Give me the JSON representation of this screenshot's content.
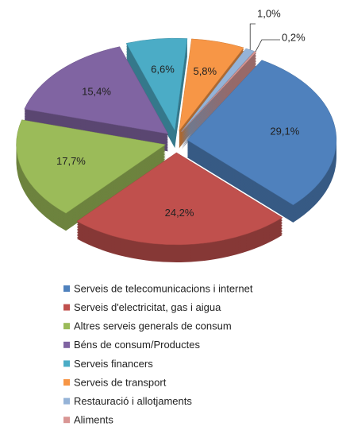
{
  "chart_data": {
    "type": "pie",
    "categories": [
      "Serveis de telecomunicacions i internet",
      "Serveis d'electricitat, gas i aigua",
      "Altres serveis generals de consum",
      "Béns de consum/Productes",
      "Serveis financers",
      "Serveis de transport",
      "Restauració i allotjaments",
      "Aliments"
    ],
    "values": [
      29.1,
      24.2,
      17.7,
      15.4,
      6.6,
      5.8,
      1.0,
      0.2
    ],
    "value_labels": [
      "29,1%",
      "24,2%",
      "17,7%",
      "15,4%",
      "6,6%",
      "5,8%",
      "1,0%",
      "0,2%"
    ],
    "colors": [
      "#4f81bd",
      "#c0504d",
      "#9bbb59",
      "#8064a2",
      "#4bacc6",
      "#f79646",
      "#95b3d7",
      "#d99694"
    ],
    "legend": "bottom"
  }
}
